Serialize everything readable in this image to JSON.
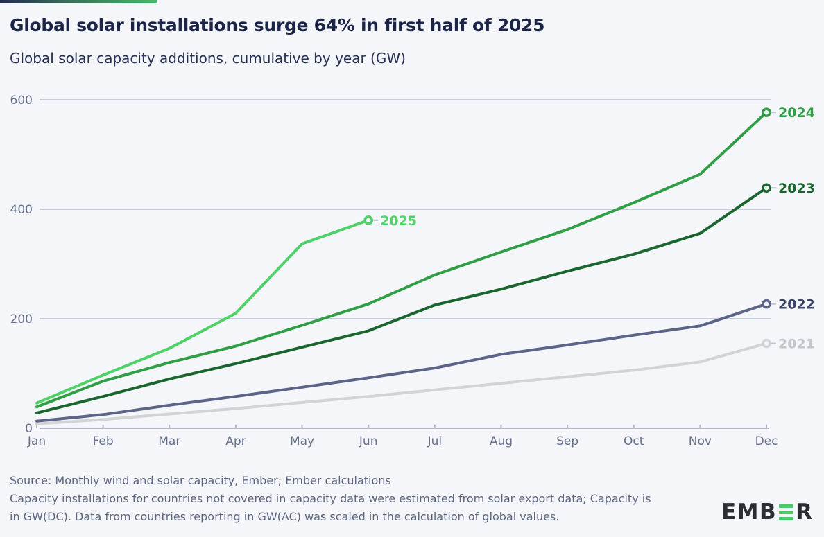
{
  "header": {
    "title": "Global solar installations surge 64% in first half of 2025",
    "subtitle": "Global solar capacity additions, cumulative by year (GW)"
  },
  "chart_data": {
    "type": "line",
    "title": "Global solar installations surge 64% in first half of 2025",
    "subtitle": "Global solar capacity additions, cumulative by year (GW)",
    "unit": "GW",
    "x_categories": [
      "Jan",
      "Feb",
      "Mar",
      "Apr",
      "May",
      "Jun",
      "Jul",
      "Aug",
      "Sep",
      "Oct",
      "Nov",
      "Dec"
    ],
    "y_ticks": [
      0,
      200,
      400,
      600
    ],
    "ylim": [
      0,
      620
    ],
    "grid": "horizontal",
    "legend_position": "end-of-line",
    "marker": "open-circle-at-last-point",
    "colors": {
      "grid_color": "#c6ccd9",
      "axis_color": "#b2b9c9",
      "tick_label_color": "#656f8b",
      "label_dash_color": "#b9c0ce",
      "background": "#f4f6fa"
    },
    "series": [
      {
        "name": "2021",
        "color": "#d2d3d6",
        "label_color": "#c3c5cb",
        "values": [
          8,
          16,
          26,
          36,
          47,
          58,
          70,
          82,
          94,
          106,
          121,
          155
        ]
      },
      {
        "name": "2022",
        "color": "#5c6487",
        "label_color": "#3c4468",
        "values": [
          13,
          25,
          42,
          58,
          75,
          92,
          110,
          135,
          152,
          170,
          187,
          227
        ]
      },
      {
        "name": "2023",
        "color": "#1a662e",
        "label_color": "#1a662e",
        "values": [
          28,
          58,
          90,
          118,
          148,
          178,
          225,
          254,
          287,
          318,
          356,
          439
        ]
      },
      {
        "name": "2024",
        "color": "#2f9e44",
        "label_color": "#2f9e44",
        "values": [
          39,
          86,
          120,
          150,
          188,
          227,
          280,
          322,
          363,
          412,
          464,
          577
        ]
      },
      {
        "name": "2025",
        "color": "#4fd168",
        "label_color": "#4fd168",
        "values": [
          46,
          97,
          146,
          210,
          337,
          380
        ]
      }
    ]
  },
  "footer": {
    "lines": [
      "Source: Monthly wind and solar capacity, Ember; Ember calculations",
      "Capacity installations for countries not covered in capacity data were estimated from solar export data; Capacity is",
      "in GW(DC). Data from countries reporting in GW(AC) was scaled in the calculation of global values."
    ]
  },
  "logo": {
    "prefix": "EMB",
    "suffix": "R",
    "bar_color": "#4cc96a",
    "text_color": "#2b2f34"
  }
}
